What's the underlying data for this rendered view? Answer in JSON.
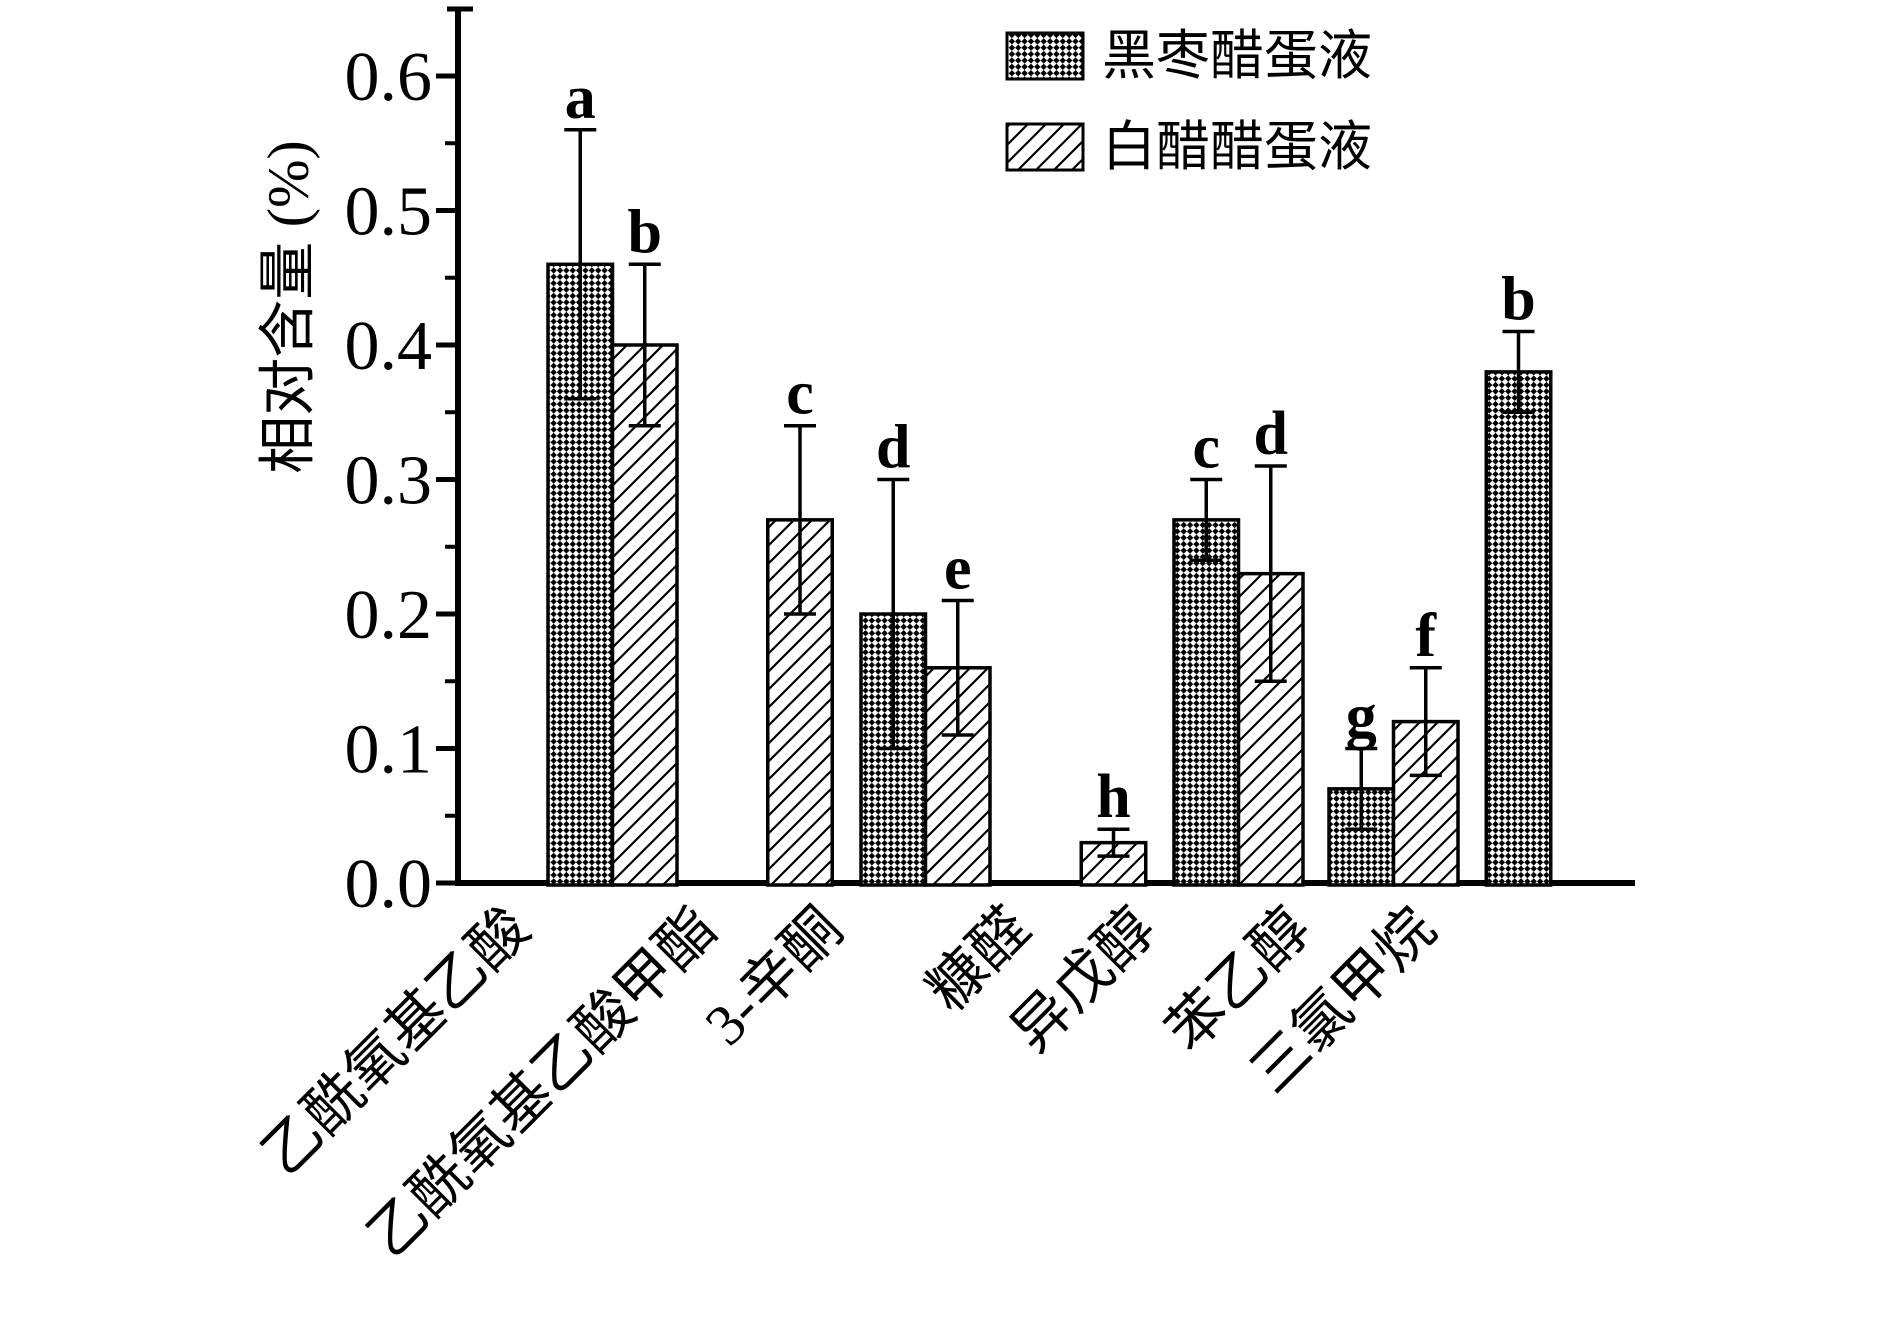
{
  "chart_data": {
    "type": "bar",
    "title": "",
    "ylabel": "相对含量 (%)",
    "xlabel": "",
    "ylim": [
      0,
      0.65
    ],
    "yticks": [
      "0.0",
      "0.1",
      "0.2",
      "0.3",
      "0.4",
      "0.5",
      "0.6"
    ],
    "minor_ytick_step": 0.05,
    "grid": false,
    "error_bars": true,
    "legend_position": "top-right",
    "categories": [
      "乙酰氧基乙酸",
      "乙酰氧基乙酸甲酯",
      "3-辛酮",
      "糠醛",
      "异戊醇",
      "苯乙醇",
      "三氯甲烷"
    ],
    "series": [
      {
        "name": "黑枣醋蛋液",
        "id": "black-jujube-vinegar-egg",
        "pattern": "checker",
        "values": [
          0.46,
          null,
          0.2,
          null,
          0.27,
          0.07,
          0.38
        ],
        "errors": [
          0.1,
          null,
          0.1,
          null,
          0.03,
          0.03,
          0.03
        ],
        "sig_letters": [
          "a",
          null,
          "d",
          null,
          "c",
          "g",
          "b"
        ]
      },
      {
        "name": "白醋醋蛋液",
        "id": "white-vinegar-vinegar-egg",
        "pattern": "diagonal-hatch",
        "values": [
          0.4,
          0.27,
          0.16,
          0.03,
          0.23,
          0.12,
          null
        ],
        "errors": [
          0.06,
          0.07,
          0.05,
          0.01,
          0.08,
          0.04,
          null
        ],
        "sig_letters": [
          "b",
          "c",
          "e",
          "h",
          "d",
          "f",
          null
        ]
      }
    ],
    "colors": {
      "ink": "#000000",
      "background": "#ffffff"
    }
  }
}
